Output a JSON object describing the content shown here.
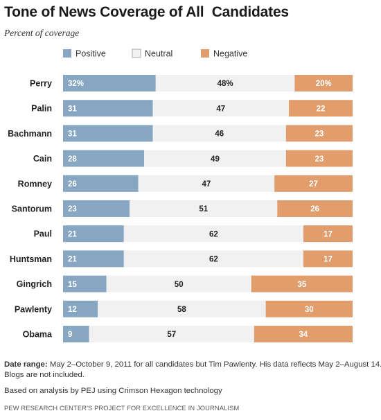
{
  "title": "Tone of News Coverage of All  Candidates",
  "subtitle": "Percent of coverage",
  "chart_data": {
    "type": "bar",
    "orientation": "horizontal",
    "stacked": true,
    "title": "Tone of News Coverage of All  Candidates",
    "subtitle": "Percent of coverage",
    "categories": [
      "Perry",
      "Palin",
      "Bachmann",
      "Cain",
      "Romney",
      "Santorum",
      "Paul",
      "Huntsman",
      "Gingrich",
      "Pawlenty",
      "Obama"
    ],
    "series": [
      {
        "name": "Positive",
        "color": "#86a6c1",
        "values": [
          32,
          31,
          31,
          28,
          26,
          23,
          21,
          21,
          15,
          12,
          9
        ]
      },
      {
        "name": "Neutral",
        "color": "#f1f1f1",
        "values": [
          48,
          47,
          46,
          49,
          47,
          51,
          62,
          62,
          50,
          58,
          57
        ]
      },
      {
        "name": "Negative",
        "color": "#e19d6c",
        "values": [
          20,
          22,
          23,
          23,
          27,
          26,
          17,
          17,
          35,
          30,
          34
        ]
      }
    ],
    "value_labels": [
      [
        "32%",
        "48%",
        "20%"
      ],
      [
        "31",
        "47",
        "22"
      ],
      [
        "31",
        "46",
        "23"
      ],
      [
        "28",
        "49",
        "23"
      ],
      [
        "26",
        "47",
        "27"
      ],
      [
        "23",
        "51",
        "26"
      ],
      [
        "21",
        "62",
        "17"
      ],
      [
        "21",
        "62",
        "17"
      ],
      [
        "15",
        "50",
        "35"
      ],
      [
        "12",
        "58",
        "30"
      ],
      [
        "9",
        "57",
        "34"
      ]
    ],
    "legend_placement": "top",
    "grid": false,
    "xlim": [
      0,
      100
    ]
  },
  "footer": {
    "date_range_label": "Date range:",
    "date_range_text": " May 2–October 9, 2011 for all candidates but Tim Pawlenty. His data reflects May 2–August 14.",
    "note_line2": "Blogs are not included.",
    "based_on": "Based on analysis by PEJ using Crimson Hexagon technology",
    "source": "PEW RESEARCH CENTER'S PROJECT FOR EXCELLENCE IN JOURNALISM"
  }
}
